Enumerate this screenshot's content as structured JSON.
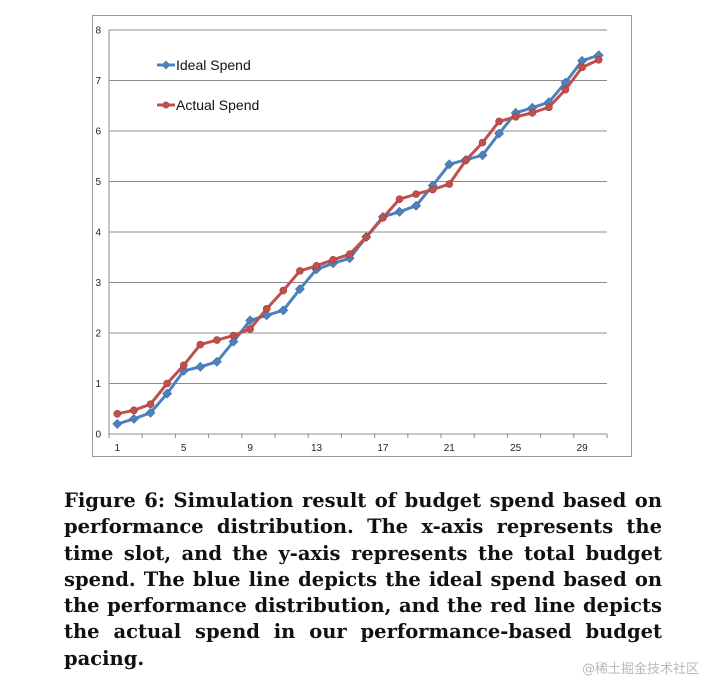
{
  "chart_data": {
    "type": "line",
    "x": [
      1,
      2,
      3,
      4,
      5,
      6,
      7,
      8,
      9,
      10,
      11,
      12,
      13,
      14,
      15,
      16,
      17,
      18,
      19,
      20,
      21,
      22,
      23,
      24,
      25,
      26,
      27,
      28,
      29,
      30
    ],
    "x_tick_labels": [
      "1",
      "5",
      "9",
      "13",
      "17",
      "21",
      "25",
      "29"
    ],
    "x_tick_values": [
      1,
      5,
      9,
      13,
      17,
      21,
      25,
      29
    ],
    "y_tick_labels": [
      "0",
      "1",
      "2",
      "3",
      "4",
      "5",
      "6",
      "7",
      "8"
    ],
    "y_tick_values": [
      0,
      1,
      2,
      3,
      4,
      5,
      6,
      7,
      8
    ],
    "ylim": [
      0,
      8
    ],
    "grid": "horizontal",
    "legend_position": "top-left",
    "series": [
      {
        "name": "Ideal Spend",
        "color": "#4f81bd",
        "marker": "diamond",
        "values": [
          0.2,
          0.3,
          0.42,
          0.8,
          1.25,
          1.33,
          1.43,
          1.83,
          2.25,
          2.35,
          2.45,
          2.87,
          3.26,
          3.38,
          3.48,
          3.9,
          4.3,
          4.4,
          4.52,
          4.92,
          5.34,
          5.43,
          5.52,
          5.95,
          6.36,
          6.46,
          6.57,
          6.96,
          7.39,
          7.5
        ]
      },
      {
        "name": "Actual Spend",
        "color": "#c0504d",
        "marker": "circle",
        "values": [
          0.4,
          0.47,
          0.59,
          1.0,
          1.36,
          1.77,
          1.86,
          1.95,
          2.08,
          2.48,
          2.84,
          3.23,
          3.33,
          3.45,
          3.56,
          3.9,
          4.28,
          4.65,
          4.75,
          4.84,
          4.95,
          5.42,
          5.77,
          6.19,
          6.28,
          6.36,
          6.47,
          6.82,
          7.26,
          7.41
        ]
      }
    ]
  },
  "caption": "Figure 6: Simulation result of budget spend based on performance distribution. The x-axis represents the time slot, and the y-axis represents the total budget spend. The blue line depicts the ideal spend based on the performance distribution, and the red line depicts the actual spend in our performance-based budget pacing.",
  "watermark": "@稀土掘金技术社区"
}
